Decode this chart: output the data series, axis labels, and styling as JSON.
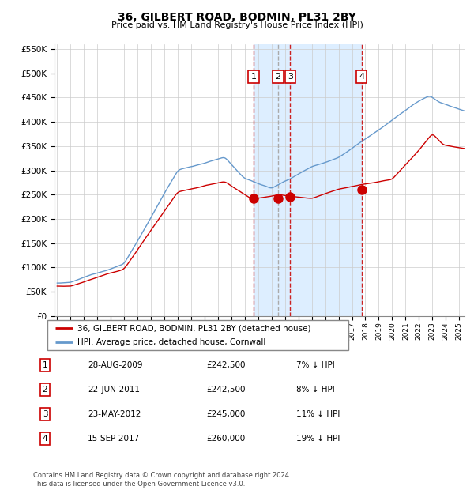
{
  "title": "36, GILBERT ROAD, BODMIN, PL31 2BY",
  "subtitle": "Price paid vs. HM Land Registry's House Price Index (HPI)",
  "ylim": [
    0,
    560000
  ],
  "yticks": [
    0,
    50000,
    100000,
    150000,
    200000,
    250000,
    300000,
    350000,
    400000,
    450000,
    500000,
    550000
  ],
  "background_color": "#ffffff",
  "grid_color": "#cccccc",
  "hpi_color": "#6699cc",
  "price_color": "#cc0000",
  "vline_color_solid": "#cc2222",
  "vline_color_dash": "#aaaaaa",
  "shade_color": "#ddeeff",
  "transactions": [
    {
      "num": 1,
      "date_x": 2009.66,
      "price": 242500,
      "label": "1"
    },
    {
      "num": 2,
      "date_x": 2011.47,
      "price": 242500,
      "label": "2"
    },
    {
      "num": 3,
      "date_x": 2012.39,
      "price": 245000,
      "label": "3"
    },
    {
      "num": 4,
      "date_x": 2017.71,
      "price": 260000,
      "label": "4"
    }
  ],
  "legend_entries": [
    "36, GILBERT ROAD, BODMIN, PL31 2BY (detached house)",
    "HPI: Average price, detached house, Cornwall"
  ],
  "table_rows": [
    {
      "num": "1",
      "date": "28-AUG-2009",
      "price": "£242,500",
      "hpi": "7% ↓ HPI"
    },
    {
      "num": "2",
      "date": "22-JUN-2011",
      "price": "£242,500",
      "hpi": "8% ↓ HPI"
    },
    {
      "num": "3",
      "date": "23-MAY-2012",
      "price": "£245,000",
      "hpi": "11% ↓ HPI"
    },
    {
      "num": "4",
      "date": "15-SEP-2017",
      "price": "£260,000",
      "hpi": "19% ↓ HPI"
    }
  ],
  "footer": "Contains HM Land Registry data © Crown copyright and database right 2024.\nThis data is licensed under the Open Government Licence v3.0.",
  "xmin": 1994.8,
  "xmax": 2025.4
}
